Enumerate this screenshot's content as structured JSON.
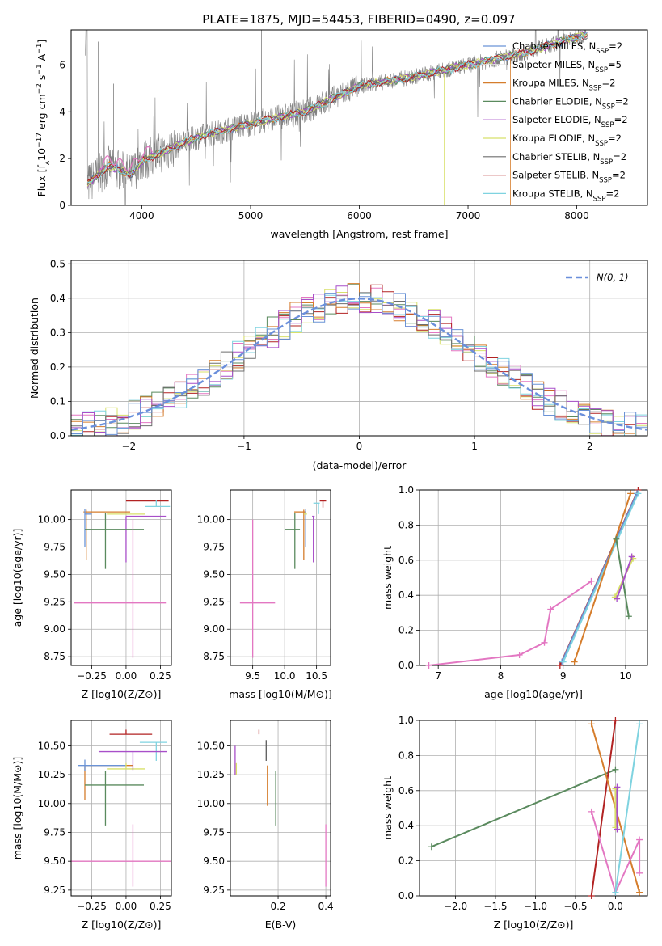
{
  "title": "PLATE=1875, MJD=54453, FIBERID=0490, z=0.097",
  "colors": {
    "chabrier_miles": "#6a93d6",
    "salpeter_miles": "#e5e5e5",
    "kroupa_miles": "#d57d2c",
    "chabrier_elodie": "#5a8a5e",
    "salpeter_elodie": "#a84fc9",
    "kroupa_elodie": "#d8e06a",
    "chabrier_stelib": "#6e6e6e",
    "salpeter_stelib": "#b22222",
    "kroupa_stelib": "#7fd3e0",
    "pink": "#e377c2",
    "data": "#808080"
  },
  "chart_data": [
    {
      "id": "spectrum",
      "type": "line",
      "title": "PLATE=1875, MJD=54453, FIBERID=0490, z=0.097",
      "xlabel": "wavelength [Angstrom, rest frame]",
      "ylabel": "Flux [f_λ 10^-17 erg cm^-2 s^-1 A^-1]",
      "xlim": [
        3350,
        8650
      ],
      "ylim": [
        0,
        7.5
      ],
      "xticks": [
        4000,
        5000,
        6000,
        7000,
        8000
      ],
      "yticks": [
        0,
        2,
        4,
        6
      ],
      "grid": false,
      "legend_position": "upper right",
      "legend": [
        {
          "base": "Chabrier MILES, N",
          "sub": "SSP",
          "tail": "=2",
          "color": "#6a93d6"
        },
        {
          "base": "Salpeter MILES, N",
          "sub": "SSP",
          "tail": "=5",
          "color": "#e5e5e5"
        },
        {
          "base": "Kroupa MILES, N",
          "sub": "SSP",
          "tail": "=2",
          "color": "#d57d2c"
        },
        {
          "base": "Chabrier ELODIE, N",
          "sub": "SSP",
          "tail": "=2",
          "color": "#5a8a5e"
        },
        {
          "base": "Salpeter ELODIE, N",
          "sub": "SSP",
          "tail": "=2",
          "color": "#a84fc9"
        },
        {
          "base": "Kroupa ELODIE, N",
          "sub": "SSP",
          "tail": "=2",
          "color": "#d8e06a"
        },
        {
          "base": "Chabrier STELIB, N",
          "sub": "SSP",
          "tail": "=2",
          "color": "#6e6e6e"
        },
        {
          "base": "Salpeter STELIB, N",
          "sub": "SSP",
          "tail": "=2",
          "color": "#b22222"
        },
        {
          "base": "Kroupa STELIB, N",
          "sub": "SSP",
          "tail": "=2",
          "color": "#7fd3e0"
        }
      ],
      "model_flux": {
        "x": [
          3500,
          3700,
          3900,
          4000,
          4300,
          4500,
          5000,
          5500,
          6000,
          6500,
          7000,
          7500,
          8000,
          8100
        ],
        "y": [
          0.9,
          1.7,
          1.3,
          1.9,
          2.5,
          2.9,
          3.5,
          4.0,
          5.1,
          5.5,
          6.0,
          6.5,
          7.2,
          7.3
        ]
      }
    },
    {
      "id": "residuals",
      "type": "step",
      "xlabel": "(data-model)/error",
      "ylabel": "Normed distribution",
      "xlim": [
        -2.5,
        2.5
      ],
      "ylim": [
        0,
        0.51
      ],
      "xticks": [
        -2,
        -1,
        0,
        1,
        2
      ],
      "yticks": [
        0.0,
        0.1,
        0.2,
        0.3,
        0.4,
        0.5
      ],
      "grid": true,
      "legend_position": "upper right",
      "legend_label": "N(0, 1)"
    },
    {
      "id": "age_vs_Z",
      "type": "errorbar",
      "xlabel": "Z [log10(Z/Z⊙)]",
      "ylabel": "age  [log10(age/yr)]",
      "xlim": [
        -0.4,
        0.33
      ],
      "ylim": [
        8.67,
        10.27
      ],
      "xticks": [
        -0.25,
        0.0,
        0.25
      ],
      "yticks": [
        8.75,
        9.0,
        9.25,
        9.5,
        9.75,
        10.0
      ],
      "grid": true,
      "points": [
        {
          "x": 0.19,
          "y": 10.17,
          "xerr": [
            0.19,
            0.12
          ],
          "yerr": [
            0.0,
            0.0
          ],
          "color": "#b22222"
        },
        {
          "x": 0.22,
          "y": 10.12,
          "xerr": [
            0.08,
            0.1
          ],
          "yerr": [
            0.0,
            0.06
          ],
          "color": "#7fd3e0"
        },
        {
          "x": -0.29,
          "y": 10.07,
          "xerr": [
            0.02,
            0.32
          ],
          "yerr": [
            0.44,
            0.02
          ],
          "color": "#d57d2c"
        },
        {
          "x": -0.3,
          "y": 10.05,
          "xerr": [
            0.0,
            0.05
          ],
          "yerr": [
            0.3,
            0.05
          ],
          "color": "#6a93d6"
        },
        {
          "x": 0.0,
          "y": 10.05,
          "xerr": [
            0.14,
            0.14
          ],
          "yerr": [
            0.0,
            0.0
          ],
          "color": "#d8e06a"
        },
        {
          "x": 0.0,
          "y": 10.03,
          "xerr": [
            0.0,
            0.29
          ],
          "yerr": [
            0.42,
            0.0
          ],
          "color": "#a84fc9"
        },
        {
          "x": -0.15,
          "y": 9.91,
          "xerr": [
            0.15,
            0.28
          ],
          "yerr": [
            0.36,
            0.15
          ],
          "color": "#5a8a5e"
        },
        {
          "x": 0.05,
          "y": 9.24,
          "xerr": [
            0.43,
            0.24
          ],
          "yerr": [
            0.5,
            0.76
          ],
          "color": "#e377c2"
        }
      ]
    },
    {
      "id": "age_vs_mass",
      "type": "errorbar",
      "xlabel": "mass [log10(M/M⊙)]",
      "ylabel": "",
      "xlim": [
        9.15,
        10.72
      ],
      "ylim": [
        8.67,
        10.27
      ],
      "xticks": [
        9.5,
        10.0,
        10.5
      ],
      "yticks": [
        8.75,
        9.0,
        9.25,
        9.5,
        9.75,
        10.0
      ],
      "grid": true,
      "points": [
        {
          "x": 10.6,
          "y": 10.17,
          "xerr": [
            0.05,
            0.05
          ],
          "yerr": [
            0.06,
            0.0
          ],
          "color": "#b22222"
        },
        {
          "x": 10.53,
          "y": 10.15,
          "xerr": [
            0.08,
            0.02
          ],
          "yerr": [
            0.1,
            0.0
          ],
          "color": "#7fd3e0"
        },
        {
          "x": 10.3,
          "y": 10.07,
          "xerr": [
            0.15,
            0.02
          ],
          "yerr": [
            0.44,
            0.02
          ],
          "color": "#d57d2c"
        },
        {
          "x": 10.33,
          "y": 10.05,
          "xerr": [
            0.0,
            0.0
          ],
          "yerr": [
            0.3,
            0.05
          ],
          "color": "#6a93d6"
        },
        {
          "x": 10.3,
          "y": 10.05,
          "xerr": [
            0.0,
            0.05
          ],
          "yerr": [
            0.0,
            0.0
          ],
          "color": "#d8e06a"
        },
        {
          "x": 10.45,
          "y": 10.03,
          "xerr": [
            0.02,
            0.02
          ],
          "yerr": [
            0.42,
            0.0
          ],
          "color": "#a84fc9"
        },
        {
          "x": 10.16,
          "y": 9.91,
          "xerr": [
            0.16,
            0.08
          ],
          "yerr": [
            0.36,
            0.15
          ],
          "color": "#5a8a5e"
        },
        {
          "x": 9.5,
          "y": 9.24,
          "xerr": [
            0.2,
            0.35
          ],
          "yerr": [
            0.5,
            0.76
          ],
          "color": "#e377c2"
        }
      ]
    },
    {
      "id": "mass_weight_vs_age",
      "type": "line",
      "xlabel": "age  [log10(age/yr)]",
      "ylabel": "mass weight",
      "xlim": [
        6.7,
        10.35
      ],
      "ylim": [
        0,
        1
      ],
      "xticks": [
        7,
        8,
        9,
        10
      ],
      "yticks": [
        0.0,
        0.2,
        0.4,
        0.6,
        0.8,
        1.0
      ],
      "grid": true,
      "series": [
        {
          "color": "#e377c2",
          "x": [
            6.85,
            8.3,
            8.7,
            8.8,
            9.45
          ],
          "y": [
            0.0,
            0.06,
            0.13,
            0.32,
            0.48
          ]
        },
        {
          "color": "#b22222",
          "x": [
            8.95,
            10.2
          ],
          "y": [
            0.0,
            1.0
          ]
        },
        {
          "color": "#6a93d6",
          "x": [
            8.98,
            10.18
          ],
          "y": [
            0.02,
            0.98
          ]
        },
        {
          "color": "#7fd3e0",
          "x": [
            9.0,
            10.2
          ],
          "y": [
            0.02,
            0.98
          ]
        },
        {
          "color": "#d57d2c",
          "x": [
            9.18,
            10.08
          ],
          "y": [
            0.02,
            0.98
          ]
        },
        {
          "color": "#5a8a5e",
          "x": [
            9.85,
            10.05
          ],
          "y": [
            0.72,
            0.28
          ]
        },
        {
          "color": "#d8e06a",
          "x": [
            9.83,
            10.12
          ],
          "y": [
            0.39,
            0.61
          ]
        },
        {
          "color": "#a84fc9",
          "x": [
            9.86,
            10.1
          ],
          "y": [
            0.38,
            0.62
          ]
        }
      ]
    },
    {
      "id": "mass_vs_Z",
      "type": "errorbar",
      "xlabel": "Z [log10(Z/Z⊙)]",
      "ylabel": "mass [log10(M/M⊙)]",
      "xlim": [
        -0.4,
        0.33
      ],
      "ylim": [
        9.2,
        10.72
      ],
      "xticks": [
        -0.25,
        0.0,
        0.25
      ],
      "yticks": [
        9.25,
        9.5,
        9.75,
        10.0,
        10.25,
        10.5
      ],
      "grid": true,
      "points": [
        {
          "x": 0.0,
          "y": 10.6,
          "xerr": [
            0.12,
            0.19
          ],
          "yerr": [
            0.0,
            0.04
          ],
          "color": "#b22222"
        },
        {
          "x": 0.22,
          "y": 10.53,
          "xerr": [
            0.12,
            0.08
          ],
          "yerr": [
            0.16,
            0.0
          ],
          "color": "#7fd3e0"
        },
        {
          "x": -0.3,
          "y": 10.33,
          "xerr": [
            0.0,
            0.35
          ],
          "yerr": [
            0.3,
            0.0
          ],
          "color": "#d57d2c"
        },
        {
          "x": -0.3,
          "y": 10.33,
          "xerr": [
            0.05,
            0.3
          ],
          "yerr": [
            0.05,
            0.05
          ],
          "color": "#6a93d6"
        },
        {
          "x": 0.0,
          "y": 10.3,
          "xerr": [
            0.14,
            0.14
          ],
          "yerr": [
            0.0,
            0.05
          ],
          "color": "#d8e06a"
        },
        {
          "x": 0.05,
          "y": 10.45,
          "xerr": [
            0.25,
            0.25
          ],
          "yerr": [
            0.16,
            0.0
          ],
          "color": "#a84fc9"
        },
        {
          "x": -0.15,
          "y": 10.16,
          "xerr": [
            0.15,
            0.28
          ],
          "yerr": [
            0.35,
            0.12
          ],
          "color": "#5a8a5e"
        },
        {
          "x": 0.05,
          "y": 9.5,
          "xerr": [
            0.45,
            0.3
          ],
          "yerr": [
            0.22,
            0.32
          ],
          "color": "#e377c2"
        }
      ]
    },
    {
      "id": "mass_vs_ebv",
      "type": "errorbar",
      "xlabel": "E(B-V)",
      "ylabel": "",
      "xlim": [
        0.0,
        0.42
      ],
      "ylim": [
        9.2,
        10.72
      ],
      "xticks": [
        0.2,
        0.4
      ],
      "yticks": [
        9.25,
        9.5,
        9.75,
        10.0,
        10.25,
        10.5
      ],
      "grid": true,
      "points": [
        {
          "x": 0.12,
          "y": 10.6,
          "xerr": [
            0.0,
            0.0
          ],
          "yerr": [
            0.0,
            0.04
          ],
          "color": "#b22222"
        },
        {
          "x": 0.15,
          "y": 10.5,
          "xerr": [
            0.0,
            0.0
          ],
          "yerr": [
            0.13,
            0.05
          ],
          "color": "#5a5a5a"
        },
        {
          "x": 0.155,
          "y": 10.33,
          "xerr": [
            0.0,
            0.0
          ],
          "yerr": [
            0.35,
            0.0
          ],
          "color": "#d57d2c"
        },
        {
          "x": 0.02,
          "y": 10.35,
          "xerr": [
            0.0,
            0.0
          ],
          "yerr": [
            0.1,
            0.15
          ],
          "color": "#a84fc9"
        },
        {
          "x": 0.025,
          "y": 10.3,
          "xerr": [
            0.0,
            0.0
          ],
          "yerr": [
            0.05,
            0.05
          ],
          "color": "#d8e06a"
        },
        {
          "x": 0.19,
          "y": 10.16,
          "xerr": [
            0.0,
            0.0
          ],
          "yerr": [
            0.35,
            0.12
          ],
          "color": "#5a8a5e"
        },
        {
          "x": 0.4,
          "y": 9.5,
          "xerr": [
            0.0,
            0.0
          ],
          "yerr": [
            0.22,
            0.32
          ],
          "color": "#e377c2"
        }
      ]
    },
    {
      "id": "mass_weight_vs_Z",
      "type": "line",
      "xlabel": "Z [log10(Z/Z⊙)]",
      "ylabel": "mass weight",
      "xlim": [
        -2.45,
        0.4
      ],
      "ylim": [
        0,
        1
      ],
      "xticks": [
        -2.0,
        -1.5,
        -1.0,
        -0.5,
        0.0
      ],
      "yticks": [
        0.0,
        0.2,
        0.4,
        0.6,
        0.8,
        1.0
      ],
      "grid": true,
      "series": [
        {
          "color": "#5a8a5e",
          "x": [
            -2.3,
            0.0
          ],
          "y": [
            0.28,
            0.72
          ]
        },
        {
          "color": "#b22222",
          "x": [
            -0.3,
            0.0
          ],
          "y": [
            0.0,
            1.0
          ]
        },
        {
          "color": "#d57d2c",
          "x": [
            -0.3,
            0.3
          ],
          "y": [
            0.98,
            0.02
          ]
        },
        {
          "color": "#e377c2",
          "x": [
            -0.3,
            0.0,
            0.3,
            0.3
          ],
          "y": [
            0.48,
            0.02,
            0.32,
            0.13
          ]
        },
        {
          "color": "#7fd3e0",
          "x": [
            0.0,
            0.3
          ],
          "y": [
            0.02,
            0.98
          ]
        },
        {
          "color": "#d8e06a",
          "x": [
            0.0,
            0.0
          ],
          "y": [
            0.39,
            0.61
          ]
        },
        {
          "color": "#a84fc9",
          "x": [
            0.02,
            0.02
          ],
          "y": [
            0.38,
            0.62
          ]
        }
      ]
    }
  ]
}
